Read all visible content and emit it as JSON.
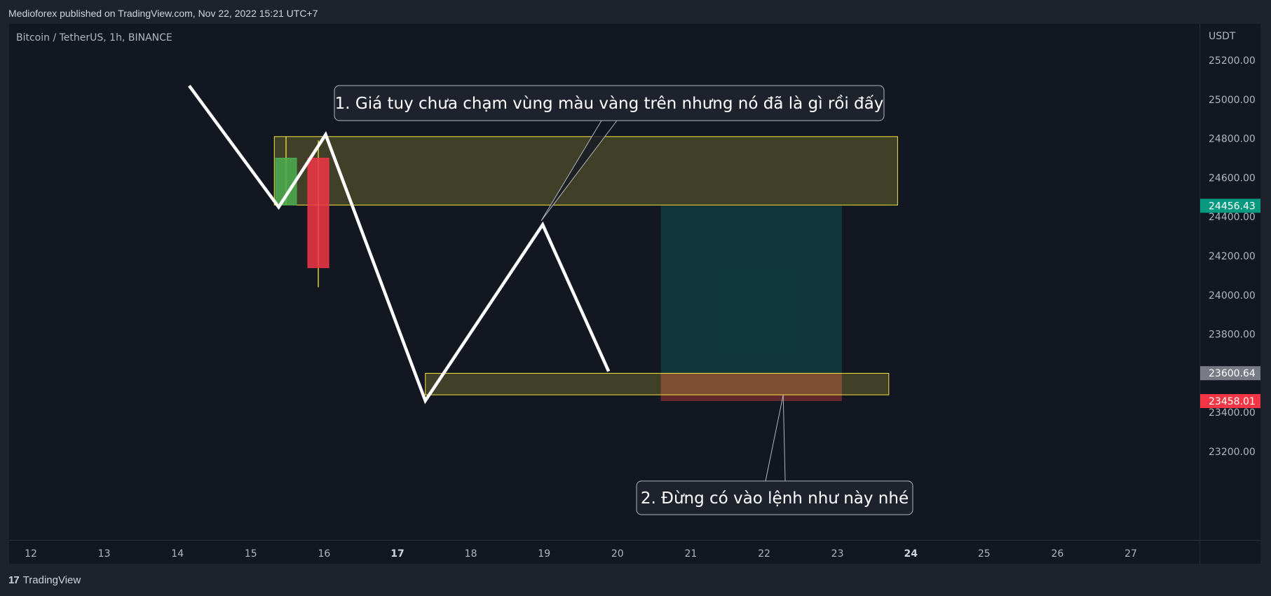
{
  "header": {
    "published": "Medioforex published on TradingView.com, Nov 22, 2022 15:21 UTC+7"
  },
  "footer": {
    "brand": "TradingView",
    "logo_mark": "17"
  },
  "chart_data": {
    "type": "candlestick",
    "legend": "Bitcoin / TetherUS, 1h, BINANCE",
    "currency_label": "USDT",
    "y_ticks": [
      "25200.00",
      "25000.00",
      "24800.00",
      "24600.00",
      "24400.00",
      "24200.00",
      "24000.00",
      "23800.00",
      "23600.00",
      "23400.00",
      "23200.00"
    ],
    "y_tick_values": [
      25200,
      25000,
      24800,
      24600,
      24400,
      24200,
      24000,
      23800,
      23600,
      23400,
      23200
    ],
    "x_ticks": [
      "12",
      "13",
      "14",
      "15",
      "16",
      "17",
      "18",
      "19",
      "20",
      "21",
      "22",
      "23",
      "24",
      "25",
      "26",
      "27"
    ],
    "x_tick_values": [
      12,
      13,
      14,
      15,
      16,
      17,
      18,
      19,
      20,
      21,
      22,
      23,
      24,
      25,
      26,
      27
    ],
    "x_bold_ticks": [
      "17",
      "24"
    ],
    "price_badges": [
      {
        "label": "24456.43",
        "value": 24456.43,
        "color": "#089981"
      },
      {
        "label": "23600.64",
        "value": 23600.64,
        "color": "#787b86"
      },
      {
        "label": "23458.01",
        "value": 23458.01,
        "color": "#f23645"
      }
    ],
    "candles": [
      {
        "x": 15.48,
        "open": 24460,
        "close": 24700,
        "high": 24810,
        "low": 24460,
        "color": "#4caf50"
      },
      {
        "x": 15.92,
        "open": 24700,
        "close": 24140,
        "high": 24790,
        "low": 24040,
        "color": "#f23645"
      }
    ],
    "zigzag": [
      {
        "x": 14.16,
        "y": 25070
      },
      {
        "x": 15.38,
        "y": 24450
      },
      {
        "x": 16.02,
        "y": 24820
      },
      {
        "x": 17.38,
        "y": 23460
      },
      {
        "x": 18.98,
        "y": 24360
      },
      {
        "x": 19.88,
        "y": 23610
      }
    ],
    "zones": [
      {
        "x1": 15.32,
        "x2": 23.82,
        "y1": 24460,
        "y2": 24810,
        "color": "#f6e542"
      },
      {
        "x1": 17.38,
        "x2": 23.7,
        "y1": 23490,
        "y2": 23600,
        "color": "#f6e542"
      }
    ],
    "position": {
      "x1": 20.59,
      "x2": 23.06,
      "entry": 23600.64,
      "target": 24456.43,
      "stop": 23458.01
    },
    "callouts": [
      {
        "text": "1. Giá tuy chưa chạm vùng màu vàng trên nhưng nó đã là gì rồi đấy",
        "tip_x": 18.96,
        "tip_y": 24380
      },
      {
        "text": "2. Đừng có vào lệnh như này nhé",
        "tip_x": 22.26,
        "tip_y": 23490
      }
    ]
  }
}
